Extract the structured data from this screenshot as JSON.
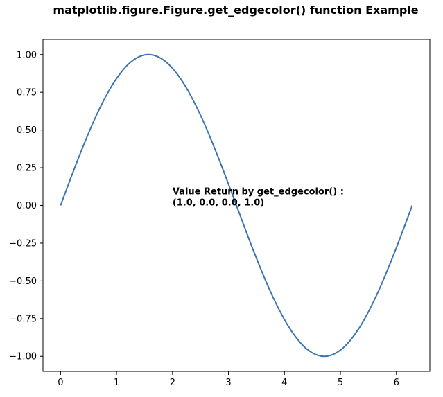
{
  "chart_data": {
    "type": "line",
    "title": "matplotlib.figure.Figure.get_edgecolor() function Example",
    "xlabel": "",
    "ylabel": "",
    "xlim": [
      -0.3141592653589793,
      6.5973445725385655
    ],
    "ylim": [
      -1.0999,
      1.0999
    ],
    "x_ticks": [
      0,
      1,
      2,
      3,
      4,
      5,
      6
    ],
    "x_tick_labels": [
      "0",
      "1",
      "2",
      "3",
      "4",
      "5",
      "6"
    ],
    "y_ticks": [
      1.0,
      0.75,
      0.5,
      0.25,
      0.0,
      -0.25,
      -0.5,
      -0.75,
      -1.0
    ],
    "y_tick_labels": [
      "1.00",
      "0.75",
      "0.50",
      "0.25",
      "0.00",
      "−0.25",
      "−0.50",
      "−0.75",
      "−1.00"
    ],
    "grid": false,
    "series": [
      {
        "color": "#3b75af",
        "x": [
          0,
          0.3142,
          0.6283,
          0.9425,
          1.2566,
          1.5708,
          1.885,
          2.1991,
          2.5133,
          2.8274,
          3.1416,
          3.4558,
          3.7699,
          4.0841,
          4.3982,
          4.7124,
          5.0265,
          5.3407,
          5.6549,
          5.969,
          6.2832
        ],
        "y": [
          0,
          0.309,
          0.5878,
          0.809,
          0.9511,
          1.0,
          0.9511,
          0.809,
          0.5878,
          0.309,
          0,
          -0.309,
          -0.5878,
          -0.809,
          -0.9511,
          -1.0,
          -0.9511,
          -0.809,
          -0.5878,
          -0.309,
          0
        ]
      }
    ],
    "annotation": {
      "lines": [
        "Value Return by get_edgecolor() :",
        "(1.0, 0.0, 0.0, 1.0)"
      ],
      "x": 2,
      "y": 0
    }
  }
}
